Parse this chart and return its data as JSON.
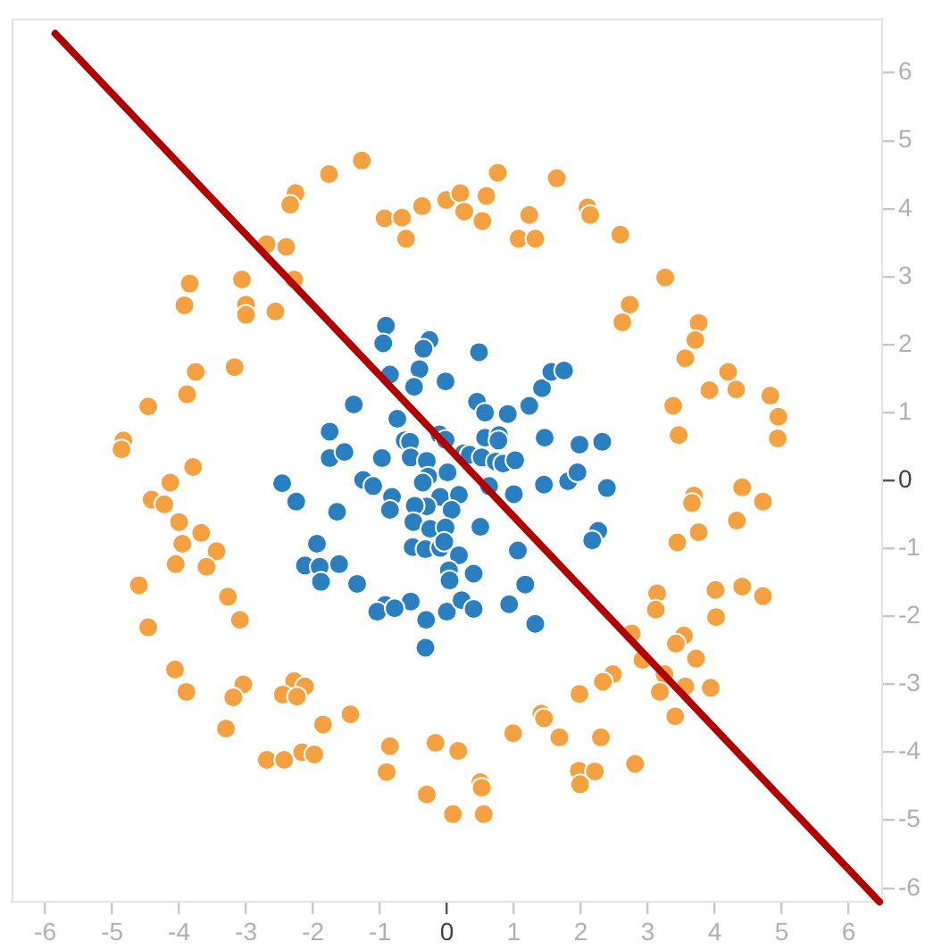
{
  "chart_data": {
    "type": "scatter",
    "xlim": [
      -6.5,
      6.5
    ],
    "ylim": [
      -6.2,
      6.8
    ],
    "xticks": [
      -6,
      -5,
      -4,
      -3,
      -2,
      -1,
      0,
      1,
      2,
      3,
      4,
      5,
      6
    ],
    "yticks": [
      -6,
      -5,
      -4,
      -3,
      -2,
      -1,
      0,
      1,
      2,
      3,
      4,
      5,
      6
    ],
    "grid": false,
    "legend": false,
    "marker": "circle",
    "series": [
      {
        "color": "#f5a142",
        "x": [
          -1.27,
          -1.76,
          -2.26,
          -2.34,
          -0.93,
          -0.67,
          -0.37,
          -0.01,
          0.2,
          -0.61,
          -2.69,
          -2.4,
          -2.28,
          -3.06,
          -3.84,
          -3.92,
          -3.0,
          -3.0,
          -2.56,
          -3.17,
          -3.75,
          -3.88,
          -4.46,
          -4.83,
          -4.86,
          -3.79,
          -4.13,
          0.76,
          1.64,
          0.59,
          0.26,
          0.53,
          1.23,
          1.07,
          1.32,
          2.1,
          2.14,
          2.59,
          3.26,
          2.73,
          2.62,
          3.76,
          3.71,
          3.56,
          4.2,
          3.92,
          4.32,
          4.83,
          4.95,
          4.94,
          3.38,
          3.46,
          3.69,
          3.66,
          4.41,
          4.72,
          4.33,
          3.76,
          3.44,
          3.14,
          3.12,
          4.01,
          4.41,
          4.72,
          4.02,
          2.76,
          3.54,
          3.42,
          3.72,
          2.92,
          3.25,
          2.48,
          2.33,
          3.56,
          3.94,
          3.18,
          1.98,
          1.41,
          1.45,
          0.99,
          1.68,
          2.3,
          3.41,
          0.17,
          2.81,
          1.97,
          2.21,
          1.99,
          0.5,
          0.52,
          0.09,
          0.55,
          -4.41,
          -4.22,
          -4.0,
          -3.67,
          -3.95,
          -3.44,
          -4.05,
          -3.59,
          -4.6,
          -3.27,
          -3.09,
          -4.46,
          -4.06,
          -3.89,
          -3.04,
          -3.19,
          -2.28,
          -2.12,
          -2.45,
          -2.24,
          -3.3,
          -1.44,
          -1.85,
          -0.85,
          -0.17,
          -2.69,
          -2.43,
          -2.16,
          -1.98,
          -0.9,
          -0.3
        ],
        "values": [
          4.71,
          4.51,
          4.23,
          4.06,
          3.86,
          3.87,
          4.04,
          4.13,
          4.23,
          3.56,
          3.48,
          3.44,
          2.96,
          2.96,
          2.9,
          2.58,
          2.59,
          2.44,
          2.49,
          1.67,
          1.6,
          1.27,
          1.09,
          0.59,
          0.46,
          0.2,
          -0.03,
          4.53,
          4.45,
          4.19,
          3.96,
          3.82,
          3.91,
          3.56,
          3.56,
          4.02,
          3.91,
          3.62,
          2.99,
          2.59,
          2.33,
          2.32,
          2.07,
          1.8,
          1.6,
          1.33,
          1.34,
          1.25,
          0.94,
          0.62,
          1.1,
          0.67,
          -0.22,
          -0.33,
          -0.1,
          -0.31,
          -0.59,
          -0.76,
          -0.91,
          -1.66,
          -1.9,
          -1.61,
          -1.56,
          -1.7,
          -2.01,
          -2.25,
          -2.28,
          -2.4,
          -2.62,
          -2.64,
          -2.85,
          -2.85,
          -2.96,
          -3.03,
          -3.05,
          -3.11,
          -3.14,
          -3.43,
          -3.5,
          -3.72,
          -3.78,
          -3.78,
          -3.47,
          -3.98,
          -4.17,
          -4.27,
          -4.28,
          -4.47,
          -4.44,
          -4.52,
          -4.91,
          -4.91,
          -0.28,
          -0.35,
          -0.61,
          -0.77,
          -0.93,
          -1.04,
          -1.23,
          -1.27,
          -1.54,
          -1.71,
          -2.05,
          -2.16,
          -2.78,
          -3.11,
          -3.0,
          -3.19,
          -2.95,
          -3.03,
          -3.15,
          -3.18,
          -3.65,
          -3.44,
          -3.59,
          -3.91,
          -3.86,
          -4.11,
          -4.11,
          -4.0,
          -4.03,
          -4.29,
          -4.62
        ]
      },
      {
        "color": "#2a7fc1",
        "x": [
          -0.91,
          -0.95,
          -0.26,
          -0.35,
          0.48,
          -0.85,
          -0.41,
          -0.49,
          -0.02,
          -1.39,
          -0.74,
          0.45,
          0.57,
          0.91,
          1.23,
          1.42,
          1.56,
          1.75,
          -1.75,
          -0.63,
          -0.55,
          -0.11,
          -0.02,
          0.57,
          0.78,
          0.77,
          1.46,
          1.98,
          2.32,
          -1.75,
          -1.53,
          -0.97,
          -0.54,
          -0.3,
          0.25,
          0.34,
          0.52,
          0.73,
          0.84,
          1.02,
          0.01,
          -0.28,
          -2.46,
          -1.25,
          -1.1,
          0.63,
          1.45,
          1.81,
          1.95,
          2.39,
          1.0,
          -0.36,
          -0.1,
          0.18,
          -0.3,
          -2.25,
          -0.82,
          -1.64,
          -0.85,
          -0.48,
          0.07,
          -0.5,
          -0.25,
          0.5,
          -0.02,
          -1.94,
          2.26,
          2.17,
          -0.51,
          -0.32,
          -0.1,
          -0.04,
          -2.12,
          -1.9,
          -1.61,
          -1.88,
          -1.34,
          0.18,
          1.06,
          0.03,
          0.4,
          0.04,
          1.17,
          -0.54,
          -0.92,
          -1.04,
          -0.78,
          0.0,
          0.22,
          0.4,
          0.93,
          -0.31,
          1.32,
          -0.32
        ],
        "values": [
          2.28,
          2.02,
          2.07,
          1.94,
          1.89,
          1.56,
          1.64,
          1.38,
          1.46,
          1.12,
          0.91,
          1.16,
          1.0,
          0.98,
          1.1,
          1.36,
          1.6,
          1.62,
          0.72,
          0.59,
          0.57,
          0.68,
          0.6,
          0.63,
          0.67,
          0.59,
          0.63,
          0.53,
          0.57,
          0.33,
          0.42,
          0.33,
          0.34,
          0.29,
          0.4,
          0.38,
          0.34,
          0.28,
          0.25,
          0.3,
          0.12,
          0.06,
          -0.04,
          0.01,
          -0.08,
          -0.08,
          -0.06,
          -0.01,
          0.12,
          -0.11,
          -0.2,
          -0.03,
          -0.24,
          -0.21,
          -0.38,
          -0.31,
          -0.24,
          -0.46,
          -0.43,
          -0.37,
          -0.43,
          -0.61,
          -0.71,
          -0.68,
          -0.69,
          -0.93,
          -0.74,
          -0.88,
          -0.98,
          -1.01,
          -0.99,
          -0.9,
          -1.25,
          -1.27,
          -1.23,
          -1.49,
          -1.52,
          -1.1,
          -1.03,
          -1.32,
          -1.37,
          -1.47,
          -1.53,
          -1.78,
          -1.83,
          -1.93,
          -1.88,
          -1.93,
          -1.76,
          -1.89,
          -1.82,
          -2.05,
          -2.11,
          -2.46
        ]
      },
      {
        "type": "line",
        "color": "#b00000",
        "marker": "none",
        "line_style": "solid",
        "x": [
          -5.85,
          6.46
        ],
        "values": [
          6.58,
          -6.2
        ]
      }
    ]
  }
}
